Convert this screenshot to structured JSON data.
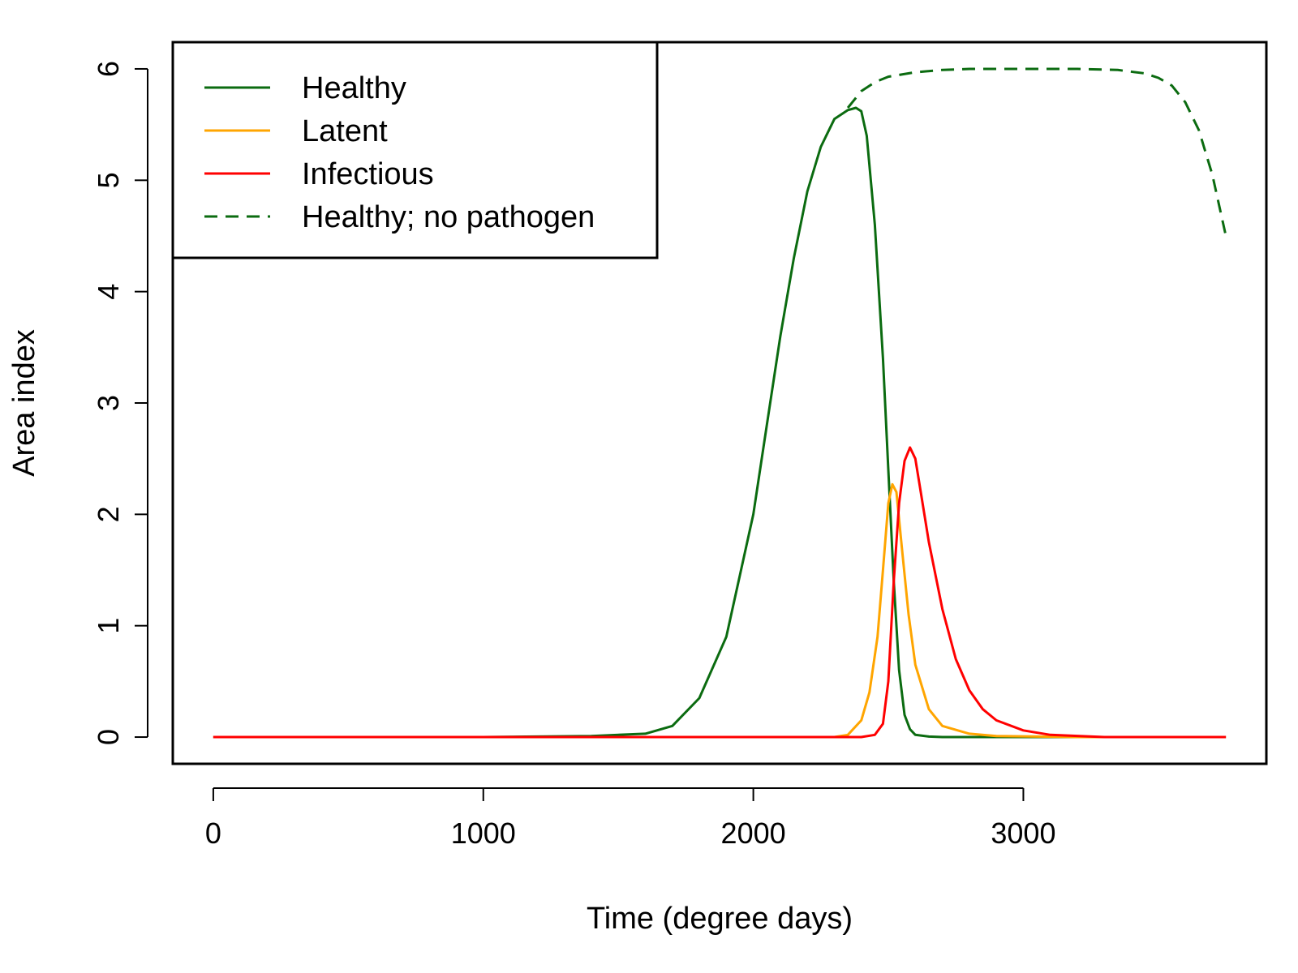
{
  "chart_data": {
    "type": "line",
    "title": "",
    "xlabel": "Time (degree days)",
    "ylabel": "Area index",
    "xlim": [
      -150,
      3900
    ],
    "ylim": [
      -0.24,
      6.24
    ],
    "xticks": [
      0,
      1000,
      2000,
      3000
    ],
    "yticks": [
      0,
      1,
      2,
      3,
      4,
      5,
      6
    ],
    "grid": false,
    "legend_position": "top-left",
    "series": [
      {
        "name": "Healthy",
        "color": "#0b6b10",
        "dash": "solid",
        "x": [
          0,
          1000,
          1400,
          1600,
          1700,
          1800,
          1900,
          2000,
          2050,
          2100,
          2150,
          2200,
          2250,
          2300,
          2350,
          2380,
          2400,
          2420,
          2450,
          2480,
          2500,
          2520,
          2540,
          2560,
          2580,
          2600,
          2650,
          2700,
          3000,
          3750
        ],
        "y": [
          0,
          0,
          0.01,
          0.03,
          0.1,
          0.35,
          0.9,
          2.0,
          2.8,
          3.6,
          4.3,
          4.9,
          5.3,
          5.55,
          5.63,
          5.65,
          5.62,
          5.4,
          4.6,
          3.4,
          2.4,
          1.4,
          0.6,
          0.2,
          0.07,
          0.02,
          0.005,
          0,
          0,
          0
        ]
      },
      {
        "name": "Latent",
        "color": "#ffa500",
        "dash": "solid",
        "x": [
          0,
          2300,
          2350,
          2400,
          2430,
          2460,
          2480,
          2500,
          2515,
          2530,
          2550,
          2575,
          2600,
          2650,
          2700,
          2800,
          2900,
          3200,
          3750
        ],
        "y": [
          0,
          0,
          0.02,
          0.15,
          0.4,
          0.9,
          1.5,
          2.1,
          2.27,
          2.2,
          1.7,
          1.1,
          0.65,
          0.25,
          0.1,
          0.03,
          0.01,
          0,
          0
        ]
      },
      {
        "name": "Infectious",
        "color": "#ff0000",
        "dash": "solid",
        "x": [
          0,
          2400,
          2450,
          2480,
          2500,
          2520,
          2540,
          2560,
          2580,
          2600,
          2620,
          2650,
          2700,
          2750,
          2800,
          2850,
          2900,
          3000,
          3100,
          3300,
          3750
        ],
        "y": [
          0,
          0,
          0.02,
          0.12,
          0.5,
          1.4,
          2.1,
          2.48,
          2.6,
          2.5,
          2.2,
          1.75,
          1.15,
          0.7,
          0.42,
          0.25,
          0.15,
          0.06,
          0.02,
          0,
          0
        ]
      },
      {
        "name": "Healthy; no pathogen",
        "color": "#0b6b10",
        "dash": "dashed",
        "x": [
          2350,
          2400,
          2450,
          2500,
          2600,
          2700,
          2800,
          3000,
          3200,
          3350,
          3450,
          3500,
          3550,
          3600,
          3650,
          3700,
          3750
        ],
        "y": [
          5.65,
          5.8,
          5.88,
          5.93,
          5.97,
          5.99,
          6.0,
          6.0,
          6.0,
          5.99,
          5.96,
          5.92,
          5.85,
          5.7,
          5.45,
          5.05,
          4.5
        ]
      }
    ]
  }
}
